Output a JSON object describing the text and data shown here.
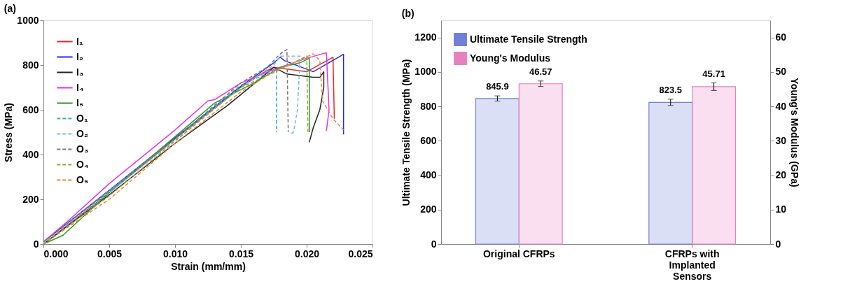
{
  "chart_data": [
    {
      "type": "line",
      "title": "(a)",
      "xlabel": "Strain (mm/mm)",
      "ylabel": "Stress (MPa)",
      "xlim": [
        0,
        0.025
      ],
      "ylim": [
        0,
        1000
      ],
      "xticks": [
        {
          "value": 0,
          "label": "0.000"
        },
        0.005,
        {
          "value": 0.01,
          "label": "0.010"
        },
        0.015,
        {
          "value": 0.02,
          "label": "0.020"
        },
        0.025
      ],
      "yticks": [
        0,
        200,
        400,
        600,
        800,
        1000
      ],
      "grid": false,
      "legend": "top left",
      "marker": "none",
      "series": [
        {
          "name": "I₁",
          "color": "#e8282d",
          "line_style": "solid",
          "x": [
            0,
            0.005,
            0.01,
            0.015,
            0.0165,
            0.0175,
            0.02,
            0.022,
            0.0221
          ],
          "values": [
            0,
            230,
            470,
            700,
            760,
            790,
            770,
            835,
            560
          ]
        },
        {
          "name": "I₂",
          "color": "#1f2fe0",
          "line_style": "solid",
          "x": [
            0,
            0.005,
            0.01,
            0.015,
            0.0175,
            0.018,
            0.0183,
            0.0205,
            0.0228,
            0.0228
          ],
          "values": [
            10,
            240,
            475,
            705,
            810,
            835,
            820,
            770,
            848,
            490
          ]
        },
        {
          "name": "I₃",
          "color": "#222222",
          "line_style": "solid",
          "x": [
            0,
            0.005,
            0.01,
            0.014,
            0.0165,
            0.0175,
            0.0185,
            0.0205,
            0.021,
            0.0213,
            0.0213,
            0.021,
            0.0205,
            0.0202
          ],
          "values": [
            0,
            220,
            450,
            620,
            740,
            790,
            760,
            745,
            745,
            770,
            700,
            600,
            520,
            455
          ]
        },
        {
          "name": "I₄",
          "color": "#e830e8",
          "line_style": "solid",
          "x": [
            0,
            0.002,
            0.005,
            0.01,
            0.0125,
            0.013,
            0.015,
            0.0175,
            0.02,
            0.0215,
            0.0217,
            0.0215
          ],
          "values": [
            10,
            110,
            270,
            510,
            640,
            645,
            720,
            780,
            830,
            855,
            600,
            505
          ]
        },
        {
          "name": "I₅",
          "color": "#2a9a2a",
          "line_style": "solid",
          "x": [
            0,
            0.0015,
            0.005,
            0.01,
            0.013,
            0.016,
            0.018,
            0.0195,
            0.0202,
            0.0202
          ],
          "values": [
            0,
            40,
            230,
            480,
            630,
            720,
            790,
            810,
            830,
            500
          ]
        },
        {
          "name": "O₁",
          "color": "#20b8c8",
          "line_style": "dashed",
          "x": [
            0,
            0.005,
            0.01,
            0.015,
            0.0177,
            0.0177
          ],
          "values": [
            10,
            240,
            470,
            710,
            780,
            500
          ]
        },
        {
          "name": "O₂",
          "color": "#70c0e8",
          "line_style": "dashed",
          "x": [
            0,
            0.005,
            0.01,
            0.015,
            0.0175,
            0.018,
            0.0195,
            0.0193,
            0.019,
            0.0187
          ],
          "values": [
            5,
            230,
            465,
            700,
            800,
            840,
            840,
            600,
            500,
            490
          ]
        },
        {
          "name": "O₃",
          "color": "#8a7070",
          "line_style": "dashed",
          "x": [
            0,
            0.005,
            0.01,
            0.015,
            0.017,
            0.018,
            0.0185,
            0.0186
          ],
          "values": [
            10,
            235,
            470,
            720,
            790,
            850,
            870,
            500
          ]
        },
        {
          "name": "O₄",
          "color": "#90a830",
          "line_style": "dashed",
          "x": [
            0,
            0.005,
            0.01,
            0.015,
            0.018,
            0.02,
            0.0201
          ],
          "values": [
            0,
            215,
            460,
            700,
            780,
            840,
            500
          ]
        },
        {
          "name": "O₅",
          "color": "#f08040",
          "line_style": "dashed",
          "x": [
            0,
            0.005,
            0.01,
            0.015,
            0.0175,
            0.0205,
            0.021,
            0.0212,
            0.022,
            0.0228
          ],
          "values": [
            0,
            200,
            450,
            680,
            770,
            850,
            820,
            640,
            560,
            510
          ]
        }
      ]
    },
    {
      "type": "bar",
      "title": "(b)",
      "ylabel": "Ultimate Tensile Strength (MPa)",
      "y2label": "Young's Modulus (GPa)",
      "categories": [
        "Original CFRPs",
        "CFRPs with Implanted Sensors"
      ],
      "ylim": [
        0,
        1300
      ],
      "yticks": [
        0,
        200,
        400,
        600,
        800,
        1000,
        1200
      ],
      "y2lim": [
        0,
        65
      ],
      "y2ticks": [
        0,
        10,
        20,
        30,
        40,
        50,
        60
      ],
      "grid": false,
      "legend": "top left",
      "data_labels": true,
      "series": [
        {
          "name": "Ultimate Tensile Strength",
          "color": "#7080d8",
          "values": [
            845.9,
            823.5
          ],
          "errors": [
            15,
            18
          ]
        },
        {
          "name": "Young's Modulus",
          "color": "#e880c0",
          "axis": "y2",
          "values": [
            46.57,
            45.71
          ],
          "errors": [
            0.8,
            1.1
          ]
        }
      ]
    }
  ]
}
